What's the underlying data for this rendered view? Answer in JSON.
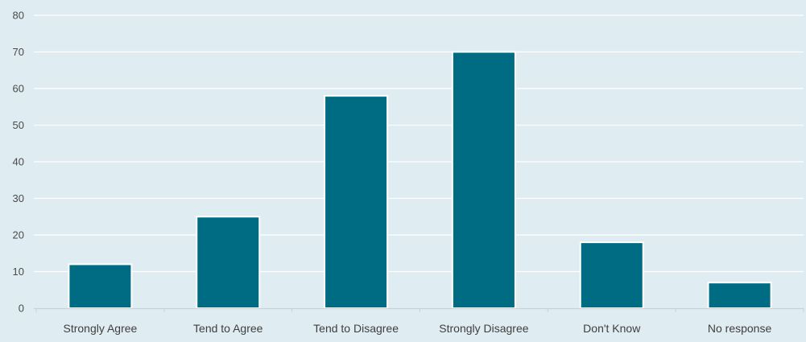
{
  "chart_data": {
    "type": "bar",
    "categories": [
      "Strongly Agree",
      "Tend to Agree",
      "Tend to Disagree",
      "Strongly Disagree",
      "Don't Know",
      "No response"
    ],
    "values": [
      12,
      25,
      58,
      70,
      18,
      7
    ],
    "yticks": [
      "0",
      "10",
      "20",
      "30",
      "40",
      "50",
      "60",
      "70",
      "80"
    ],
    "ylim": [
      0,
      80
    ],
    "grid": true,
    "legend": "none",
    "colors": {
      "bar": "#006c84",
      "bar_outline": "#ffffff",
      "background": "#dfecf1",
      "grid": "#ffffff",
      "axis": "#c5d3da"
    }
  }
}
